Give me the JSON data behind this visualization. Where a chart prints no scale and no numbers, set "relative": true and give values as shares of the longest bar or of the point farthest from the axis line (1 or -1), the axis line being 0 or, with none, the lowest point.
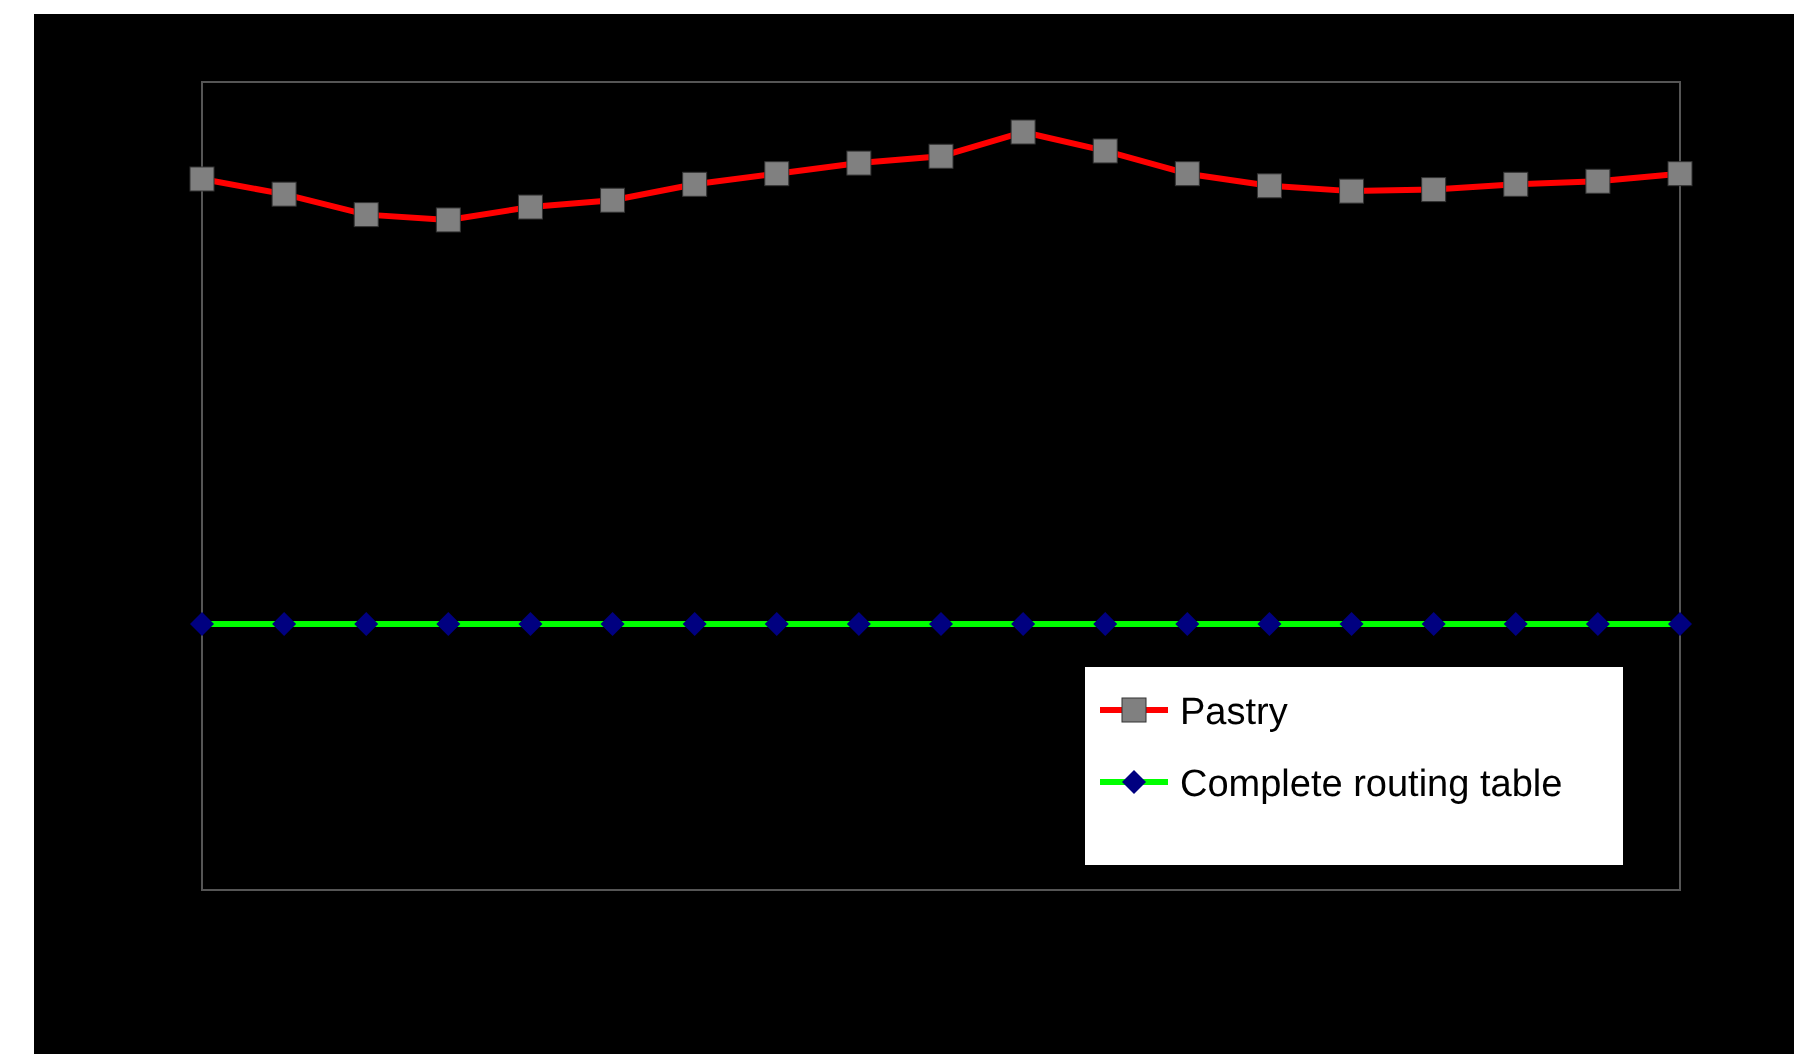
{
  "chart_data": {
    "type": "line",
    "relative": true,
    "legend": "bottom right",
    "categories": [
      null,
      null,
      null,
      null,
      null,
      null,
      null,
      null,
      null,
      null,
      null,
      null,
      null,
      null,
      null,
      null,
      null,
      null,
      null
    ],
    "series": [
      {
        "name": "Pastry",
        "color": "#ff0000",
        "marker": "square",
        "values": [
          0.938,
          0.918,
          0.891,
          0.884,
          0.901,
          0.91,
          0.931,
          0.945,
          0.959,
          0.968,
          1,
          0.975,
          0.945,
          0.929,
          0.922,
          0.924,
          0.931,
          0.935,
          0.945
        ]
      },
      {
        "name": "Complete routing table",
        "color": "#00ff00",
        "marker": "diamond",
        "values": [
          0.351,
          0.351,
          0.351,
          0.351,
          0.351,
          0.351,
          0.351,
          0.351,
          0.351,
          0.351,
          0.351,
          0.351,
          0.351,
          0.351,
          0.351,
          0.351,
          0.351,
          0.351,
          0.351
        ]
      }
    ]
  }
}
